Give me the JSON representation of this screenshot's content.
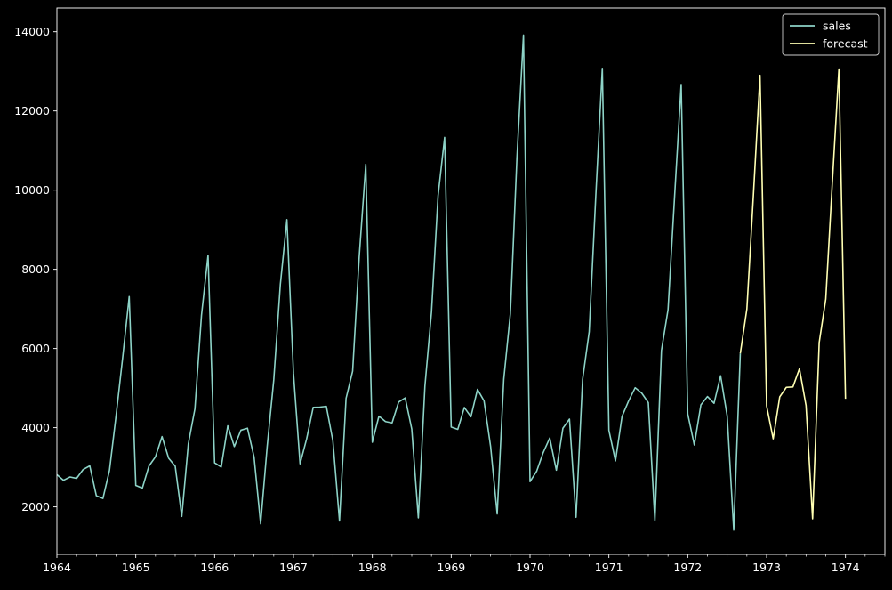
{
  "chart_data": {
    "type": "line",
    "title": "",
    "xlabel": "",
    "ylabel": "",
    "background": "#000000",
    "foreground": "#ffffff",
    "grid": false,
    "legend_position": "top-right",
    "xlim": [
      "1964-01",
      "1974-07"
    ],
    "ylim": [
      800,
      14600
    ],
    "x_ticks": [
      "1964",
      "1965",
      "1966",
      "1967",
      "1968",
      "1969",
      "1970",
      "1971",
      "1972",
      "1973",
      "1974"
    ],
    "y_ticks": [
      "2000",
      "4000",
      "6000",
      "8000",
      "10000",
      "12000",
      "14000"
    ],
    "series": [
      {
        "name": "sales",
        "color": "#8dd3c7",
        "start": "1964-01",
        "frequency": "monthly",
        "values": [
          2815,
          2672,
          2755,
          2721,
          2946,
          3036,
          2282,
          2212,
          2922,
          4301,
          5764,
          7312,
          2541,
          2475,
          3031,
          3266,
          3776,
          3230,
          3028,
          1759,
          3595,
          4474,
          6838,
          8357,
          3113,
          3006,
          4047,
          3523,
          3937,
          3986,
          3260,
          1573,
          3528,
          5211,
          7614,
          9254,
          5375,
          3088,
          3718,
          4514,
          4520,
          4539,
          3663,
          1643,
          4739,
          5428,
          8314,
          10651,
          3633,
          4292,
          4154,
          4121,
          4647,
          4753,
          3965,
          1723,
          5048,
          6922,
          9858,
          11331,
          4016,
          3957,
          4510,
          4276,
          4968,
          4677,
          3523,
          1821,
          5222,
          6872,
          10803,
          13916,
          2639,
          2899,
          3370,
          3740,
          2927,
          3986,
          4217,
          1738,
          5221,
          6424,
          9842,
          13076,
          3934,
          3162,
          4286,
          4676,
          5010,
          4874,
          4633,
          1659,
          5951,
          6981,
          9851,
          12670,
          4348,
          3564,
          4577,
          4788,
          4618,
          5312,
          4298,
          1413,
          5877
        ]
      },
      {
        "name": "forecast",
        "color": "#ffffb3",
        "start": "1972-09",
        "frequency": "monthly",
        "values": [
          5877,
          7000,
          9900,
          12900,
          4550,
          3720,
          4780,
          5020,
          5030,
          5490,
          4560,
          1700,
          6150,
          7250,
          10200,
          13060,
          4730
        ]
      }
    ]
  }
}
